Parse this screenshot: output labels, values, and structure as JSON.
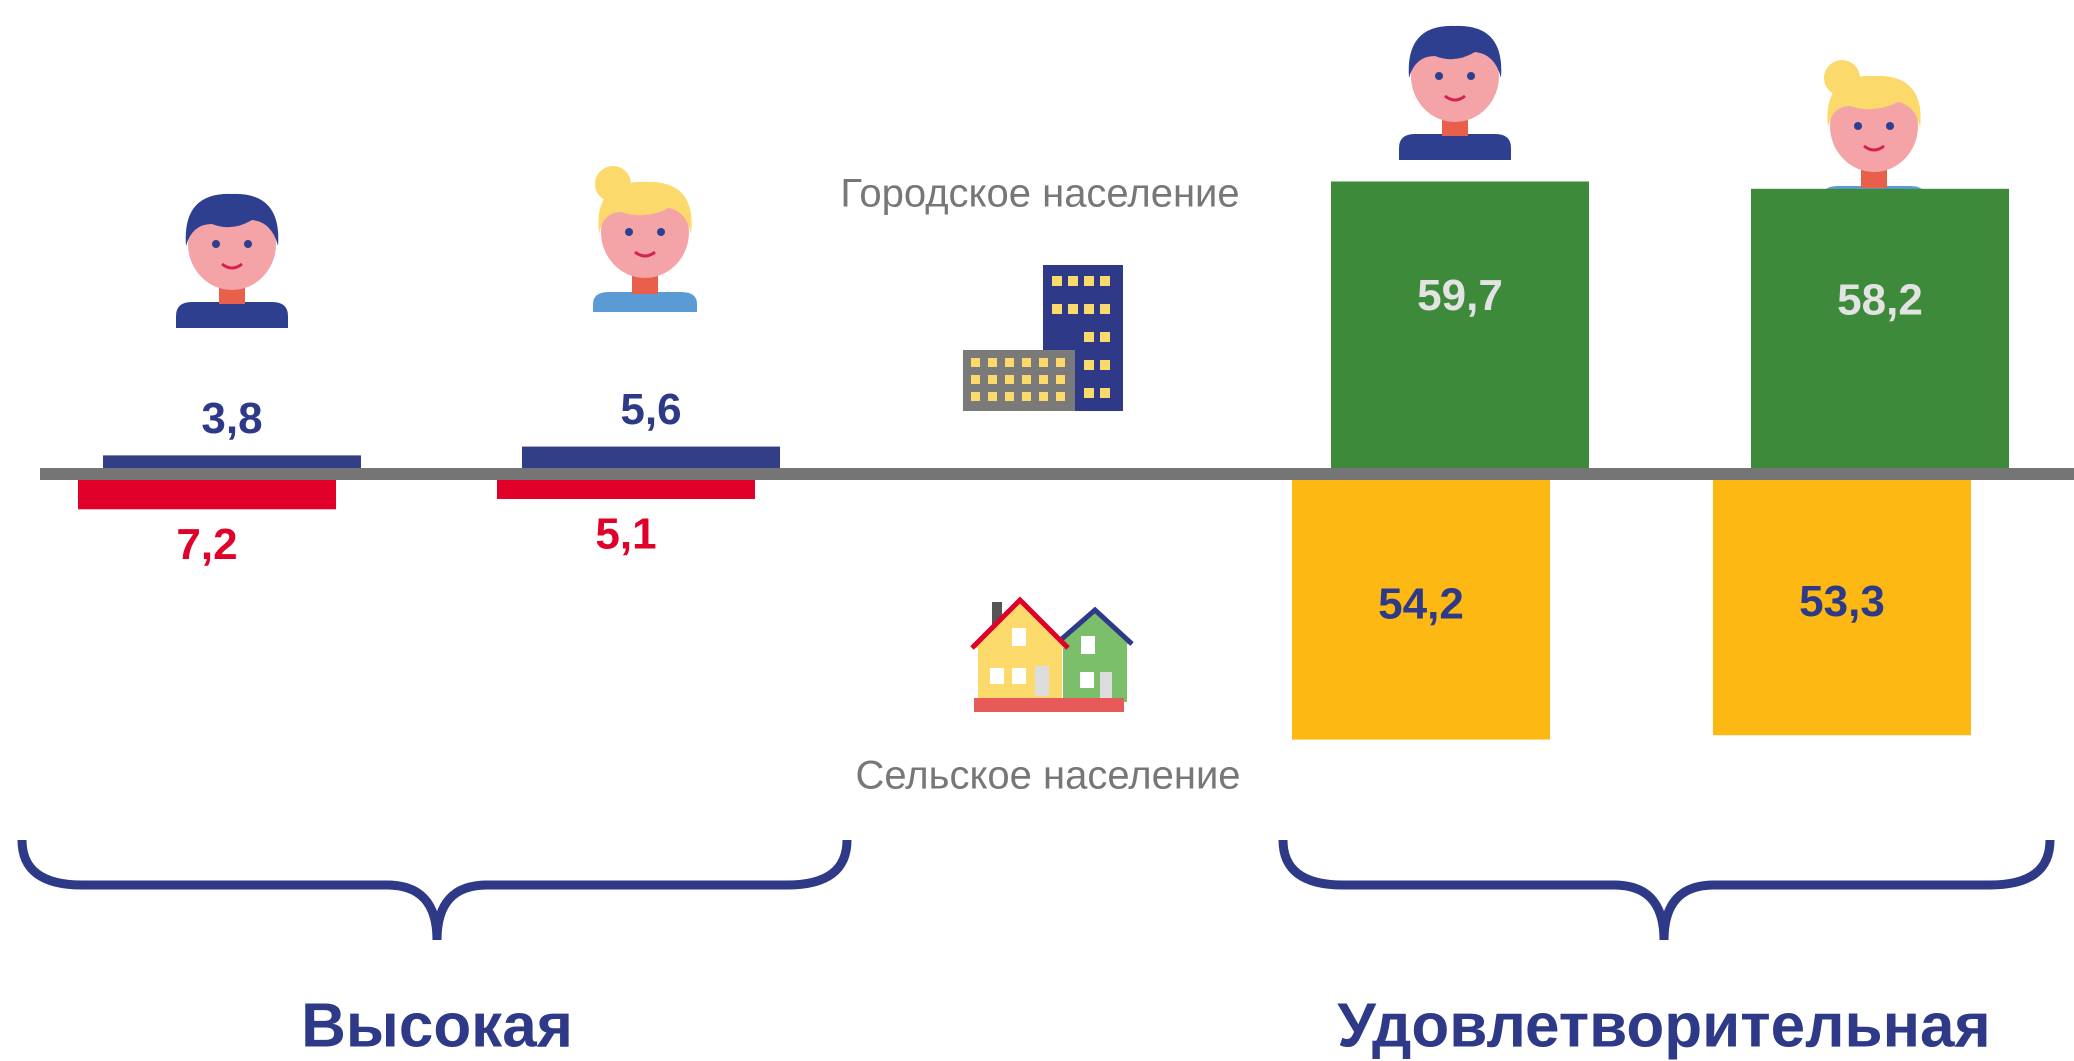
{
  "chart_data": {
    "type": "diverging-bar",
    "series": [
      {
        "name": "Городское население",
        "values": [
          3.8,
          5.6,
          59.7,
          58.2
        ],
        "value_labels": [
          "3,8",
          "5,6",
          "59,7",
          "58,2"
        ],
        "colors": [
          "#323f87",
          "#323f87",
          "#3d8a3a",
          "#3d8a3a"
        ],
        "label_colors": [
          "#2e3a87",
          "#2e3a87",
          "#e3e3e3",
          "#e3e3e3"
        ]
      },
      {
        "name": "Сельское население",
        "values": [
          7.2,
          5.1,
          54.2,
          53.3
        ],
        "value_labels": [
          "7,2",
          "5,1",
          "54,2",
          "53,3"
        ],
        "colors": [
          "#e0002a",
          "#e0002a",
          "#fdb813",
          "#fdb813"
        ],
        "label_colors": [
          "#e0002a",
          "#e0002a",
          "#2e3a87",
          "#2e3a87"
        ]
      }
    ],
    "groups": [
      "Высокая",
      "Удовлетворительная"
    ]
  }
}
